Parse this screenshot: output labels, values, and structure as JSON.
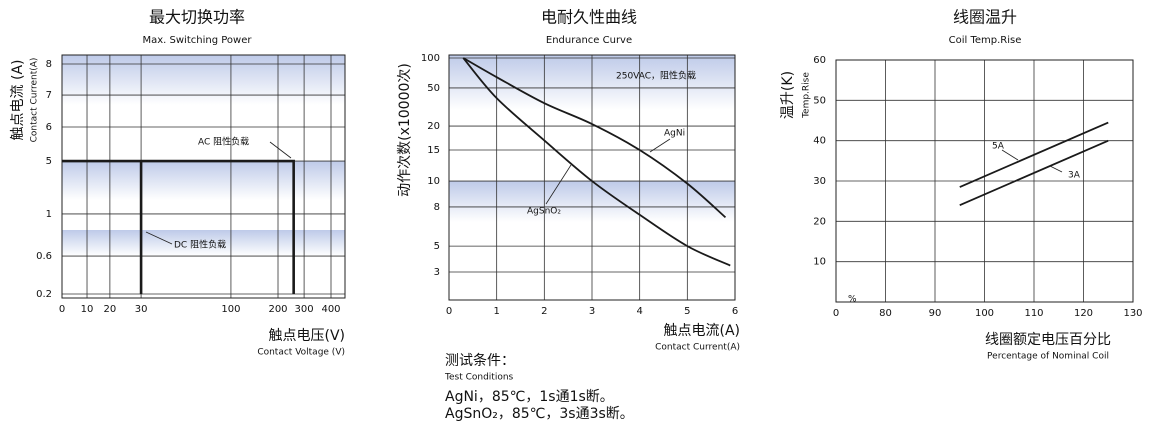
{
  "chart_data": [
    {
      "type": "line",
      "title": "最大切换功率",
      "subtitle": "Max. Switching Power",
      "y_label": "触点电流 (A)",
      "y_sublabel": "Contact Current(A)",
      "x_label": "触点电压(V)",
      "x_sublabel": "Contact Voltage (V)",
      "xlim": [
        0,
        400
      ],
      "xticks": [
        0,
        10,
        20,
        30,
        100,
        200,
        300,
        400
      ],
      "ylim": [
        0.2,
        8
      ],
      "yticks": [
        0.2,
        0.6,
        1,
        5,
        6,
        7,
        8
      ],
      "grid": true,
      "series": [
        {
          "color": "#1a1a1a",
          "x": [
            0,
            260,
            260
          ],
          "values": [
            5,
            5,
            0.2
          ]
        },
        {
          "color": "#1a1a1a",
          "x": [
            30,
            30
          ],
          "values": [
            0.2,
            5
          ]
        }
      ],
      "annotations": [
        "AC 阻性负载",
        "DC 阻性负载"
      ]
    },
    {
      "type": "line",
      "title": "电耐久性曲线",
      "subtitle": "Endurance Curve",
      "y_label": "动作次数(x10000次)",
      "x_label": "触点电流(A)",
      "x_sublabel": "Contact Current(A)",
      "xlim": [
        0,
        6
      ],
      "xticks": [
        0,
        1,
        2,
        3,
        4,
        5,
        6
      ],
      "ylim": [
        3,
        100
      ],
      "yticks": [
        3,
        5,
        8,
        10,
        15,
        20,
        50,
        100
      ],
      "grid": true,
      "series": [
        {
          "color": "#1a1a1a",
          "x": [
            0.3,
            1,
            2,
            3,
            4,
            5,
            5.8
          ],
          "values": [
            100,
            68,
            38,
            21.6,
            15,
            9.8,
            7.2
          ]
        },
        {
          "color": "#1a1a1a",
          "x": [
            0.3,
            1,
            2,
            3,
            4,
            5,
            5.9
          ],
          "values": [
            100,
            42,
            17,
            10,
            7.4,
            5,
            3.5
          ]
        }
      ],
      "annotations": [
        "250VAC，阻性负载",
        "AgNi",
        "AgSnO₂"
      ]
    },
    {
      "type": "line",
      "title": "线圈温升",
      "subtitle": "Coil Temp.Rise",
      "y_label": "温升(K)",
      "y_sublabel": "Temp.Rise",
      "x_label": "线圈额定电压百分比",
      "x_sublabel": "Percentage of Nominal Coil",
      "xlim": [
        0,
        130
      ],
      "xticks": [
        0,
        80,
        90,
        100,
        110,
        120,
        130
      ],
      "ylim": [
        0,
        60
      ],
      "yticks": [
        10,
        20,
        30,
        40,
        50,
        60
      ],
      "grid": true,
      "series": [
        {
          "color": "#1a1a1a",
          "x": [
            95,
            125
          ],
          "values": [
            28.5,
            44.5
          ]
        },
        {
          "color": "#1a1a1a",
          "x": [
            95,
            125
          ],
          "values": [
            24,
            40
          ]
        }
      ],
      "annotations": [
        "5A",
        "3A",
        "%"
      ]
    }
  ],
  "test_conditions": {
    "title": "测试条件：",
    "subtitle": "Test Conditions",
    "lines": [
      "AgNi，85℃，1s通1s断。",
      "AgSnO₂，85℃，3s通3s断。"
    ]
  }
}
